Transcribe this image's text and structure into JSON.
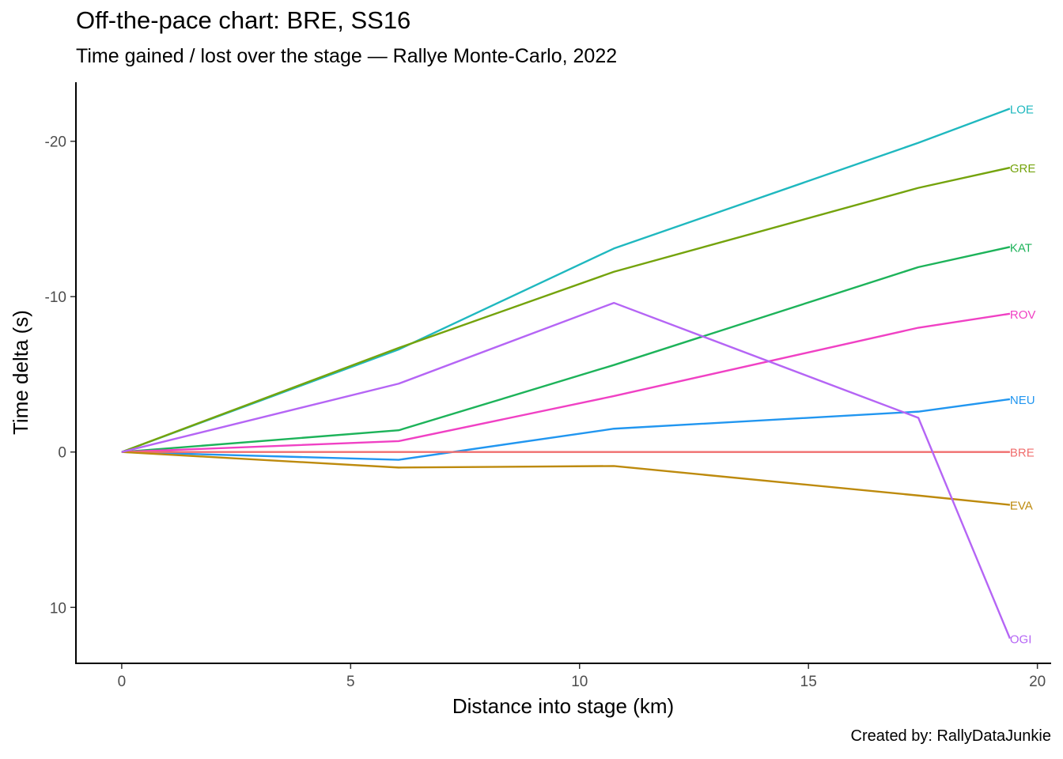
{
  "chart_data": {
    "type": "line",
    "title": "Off-the-pace chart: BRE, SS16",
    "subtitle": "Time gained / lost over the stage — Rallye Monte-Carlo, 2022",
    "caption": "Created by: RallyDataJunkie",
    "xlabel": "Distance into stage (km)",
    "ylabel": "Time delta (s)",
    "xlim": [
      -1,
      20.3
    ],
    "ylim": [
      13.6,
      -23.8
    ],
    "y_reversed": true,
    "xticks": [
      0,
      5,
      10,
      15,
      20
    ],
    "yticks": [
      -20,
      -10,
      0,
      10
    ],
    "grid": false,
    "legend": "none (labels at line ends)",
    "x": [
      0,
      6.05,
      10.75,
      17.4,
      19.4
    ],
    "series": [
      {
        "name": "LOE",
        "color": "#1fb8bf",
        "values": [
          0,
          -6.6,
          -13.1,
          -19.9,
          -22.1
        ]
      },
      {
        "name": "GRE",
        "color": "#74a30c",
        "values": [
          0,
          -6.7,
          -11.6,
          -17.0,
          -18.3
        ]
      },
      {
        "name": "KAT",
        "color": "#1db35a",
        "values": [
          0,
          -1.4,
          -5.6,
          -11.9,
          -13.2
        ]
      },
      {
        "name": "ROV",
        "color": "#f041c4",
        "values": [
          0,
          -0.7,
          -3.6,
          -8.0,
          -8.9
        ]
      },
      {
        "name": "NEU",
        "color": "#2196f0",
        "values": [
          0,
          0.5,
          -1.5,
          -2.6,
          -3.4
        ]
      },
      {
        "name": "BRE",
        "color": "#f06e6e",
        "values": [
          0,
          0,
          0,
          0,
          0
        ]
      },
      {
        "name": "EVA",
        "color": "#bd8a0d",
        "values": [
          0,
          1.0,
          0.9,
          2.8,
          3.4
        ]
      },
      {
        "name": "OGI",
        "color": "#b565f5",
        "values": [
          0,
          -4.4,
          -9.6,
          -2.2,
          12.0
        ]
      }
    ]
  }
}
